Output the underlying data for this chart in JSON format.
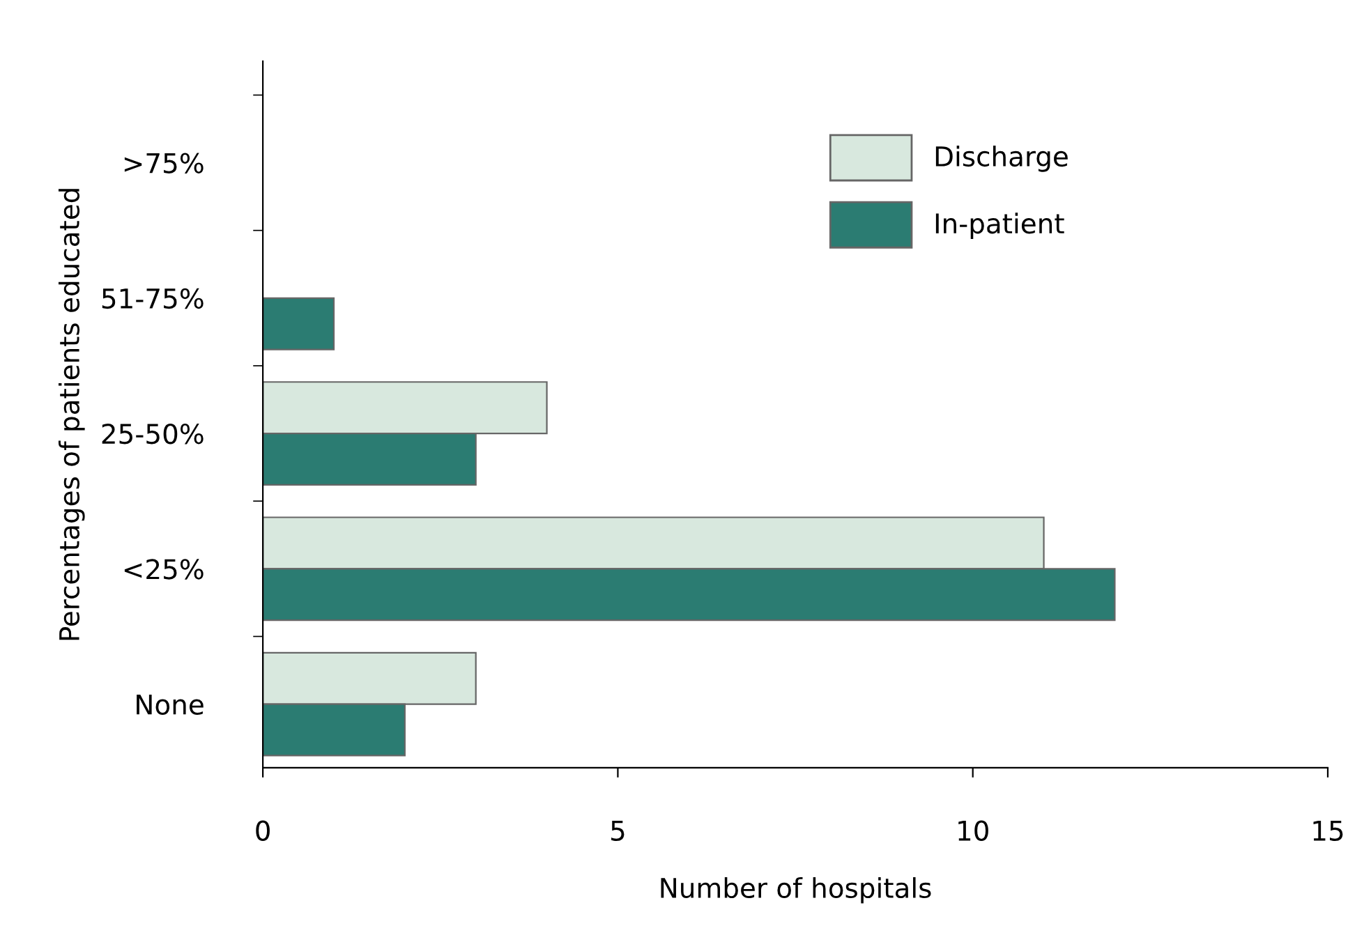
{
  "chart_data": {
    "type": "bar",
    "orientation": "horizontal",
    "categories": [
      ">75%",
      "51-75%",
      "25-50%",
      "<25%",
      "None"
    ],
    "series": [
      {
        "name": "Discharge",
        "color": "#d8e8de",
        "values": [
          null,
          null,
          4,
          11,
          3
        ]
      },
      {
        "name": "In-patient",
        "color": "#2b7c72",
        "values": [
          null,
          1,
          3,
          12,
          2
        ]
      }
    ],
    "xlabel": "Number of hospitals",
    "ylabel": "Percentages of patients educated",
    "xlim": [
      0,
      15
    ],
    "xticks": [
      0,
      5,
      10,
      15
    ],
    "grid": false,
    "legend": "top right"
  }
}
